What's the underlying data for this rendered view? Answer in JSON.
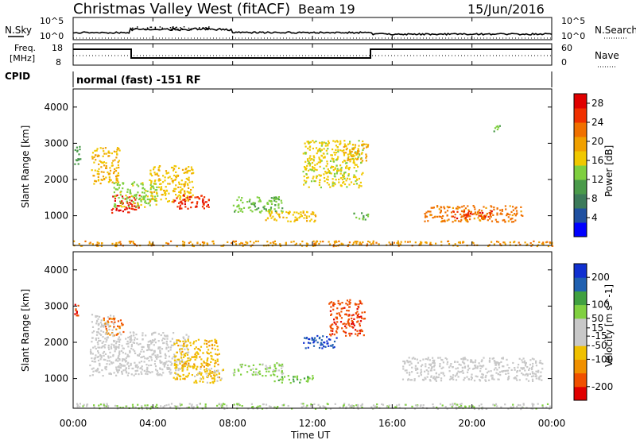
{
  "header": {
    "station": "Christmas Valley West (fitACF)",
    "beam": "Beam 19",
    "date": "15/Jun/2016"
  },
  "top_panels": {
    "nsky_label": "N.Sky",
    "nsky_ticks": [
      "10^5",
      "10^0"
    ],
    "nsearch_label": "N.Search",
    "nsearch_ticks": [
      "10^5",
      "10^0"
    ],
    "freq_label_line1": "Freq.",
    "freq_label_line2": "[MHz]",
    "freq_ticks": [
      "18",
      "8"
    ],
    "nave_label": "Nave",
    "nave_ticks": [
      "60",
      "0"
    ],
    "cpid_label": "CPID",
    "cpid_value": "normal (fast) -151 RF"
  },
  "time_axis": {
    "label": "Time UT",
    "ticks": [
      "00:00",
      "04:00",
      "08:00",
      "12:00",
      "16:00",
      "20:00",
      "00:00"
    ]
  },
  "colors": {
    "power_scale": [
      "#0000ff",
      "#2050a0",
      "#3c7a5a",
      "#4a9a4a",
      "#7fcf3f",
      "#f0c800",
      "#f0a000",
      "#f07000",
      "#f03000",
      "#e00000"
    ],
    "velocity_scale": [
      "#e00000",
      "#f05000",
      "#f09000",
      "#f0c000",
      "#c8c8c8",
      "#c8c8c8",
      "#80d040",
      "#40a040",
      "#2060b0",
      "#1030d0"
    ]
  },
  "chart_data": [
    {
      "type": "heatmap",
      "title": "",
      "xlabel": "Time UT",
      "ylabel": "Slant Range [km]",
      "ylim": [
        180,
        4500
      ],
      "y_ticks": [
        1000,
        2000,
        3000,
        4000
      ],
      "colorbar": {
        "label": "Power [dB]",
        "ticks": [
          4,
          8,
          12,
          16,
          20,
          24,
          28
        ],
        "range": [
          0,
          30
        ]
      },
      "regions": [
        {
          "t": [
            0.05,
            0.35
          ],
          "r": [
            2400,
            3000
          ],
          "value": 10
        },
        {
          "t": [
            0.9,
            2.3
          ],
          "r": [
            1900,
            2900
          ],
          "value": 18
        },
        {
          "t": [
            1.9,
            3.3
          ],
          "r": [
            1100,
            1600
          ],
          "value": 27
        },
        {
          "t": [
            2.0,
            4.2
          ],
          "r": [
            1250,
            1950
          ],
          "value": 14
        },
        {
          "t": [
            3.8,
            6.0
          ],
          "r": [
            1400,
            2400
          ],
          "value": 17
        },
        {
          "t": [
            5.0,
            6.8
          ],
          "r": [
            1200,
            1600
          ],
          "value": 26
        },
        {
          "t": [
            8.0,
            10.5
          ],
          "r": [
            1100,
            1550
          ],
          "value": 13
        },
        {
          "t": [
            9.5,
            12.2
          ],
          "r": [
            850,
            1150
          ],
          "value": 17
        },
        {
          "t": [
            11.5,
            14.5
          ],
          "r": [
            1800,
            3100
          ],
          "value": 16
        },
        {
          "t": [
            14.0,
            14.8
          ],
          "r": [
            900,
            1100
          ],
          "value": 12
        },
        {
          "t": [
            13.5,
            14.8
          ],
          "r": [
            2500,
            3000
          ],
          "value": 19
        },
        {
          "t": [
            17.5,
            22.5
          ],
          "r": [
            850,
            1300
          ],
          "value": 22
        },
        {
          "t": [
            19.0,
            21.0
          ],
          "r": [
            950,
            1150
          ],
          "value": 26
        },
        {
          "t": [
            21.0,
            21.4
          ],
          "r": [
            3350,
            3550
          ],
          "value": 12
        },
        {
          "t": [
            0.0,
            24.0
          ],
          "r": [
            180,
            320
          ],
          "value": 20
        }
      ]
    },
    {
      "type": "heatmap",
      "title": "",
      "xlabel": "Time UT",
      "ylabel": "Slant Range [km]",
      "ylim": [
        180,
        4500
      ],
      "y_ticks": [
        1000,
        2000,
        3000,
        4000
      ],
      "colorbar": {
        "label": "Velocity [m s^-1]",
        "ticks": [
          -200,
          -100,
          -50,
          -15,
          15,
          50,
          100,
          200
        ],
        "range": [
          -250,
          250
        ]
      },
      "regions": [
        {
          "t": [
            0.05,
            0.35
          ],
          "r": [
            2700,
            3100
          ],
          "value": -200
        },
        {
          "t": [
            0.9,
            2.0
          ],
          "r": [
            2300,
            2800
          ],
          "value": 0
        },
        {
          "t": [
            1.5,
            2.5
          ],
          "r": [
            2200,
            2700
          ],
          "value": -150
        },
        {
          "t": [
            0.8,
            5.8
          ],
          "r": [
            1100,
            2300
          ],
          "value": 0
        },
        {
          "t": [
            5.0,
            7.3
          ],
          "r": [
            1000,
            2100
          ],
          "value": -80
        },
        {
          "t": [
            6.0,
            7.5
          ],
          "r": [
            900,
            1300
          ],
          "value": -60
        },
        {
          "t": [
            8.0,
            10.5
          ],
          "r": [
            1100,
            1450
          ],
          "value": 60
        },
        {
          "t": [
            10.0,
            12.0
          ],
          "r": [
            900,
            1100
          ],
          "value": 80
        },
        {
          "t": [
            11.5,
            13.2
          ],
          "r": [
            1850,
            2200
          ],
          "value": 200
        },
        {
          "t": [
            12.8,
            14.6
          ],
          "r": [
            2200,
            3200
          ],
          "value": -180
        },
        {
          "t": [
            16.5,
            23.5
          ],
          "r": [
            950,
            1600
          ],
          "value": 0
        },
        {
          "t": [
            0.0,
            24.0
          ],
          "r": [
            180,
            330
          ],
          "value": 40
        }
      ]
    }
  ]
}
